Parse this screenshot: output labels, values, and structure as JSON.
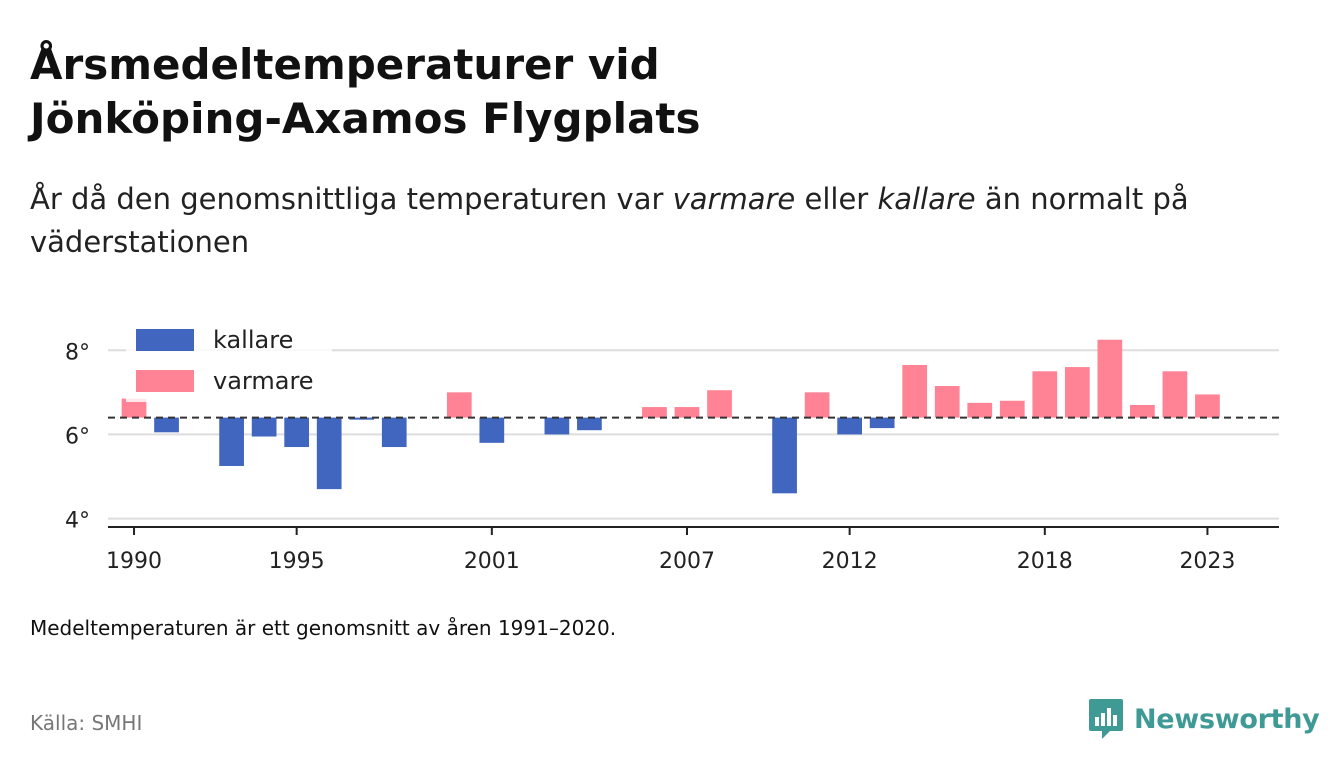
{
  "title_line1": "Årsmedeltemperaturer vid",
  "title_line2": "Jönköping-Axamos Flygplats",
  "subtitle_part1": "År då den genomsnittliga temperaturen var ",
  "subtitle_em1": "varmare",
  "subtitle_part2": " eller ",
  "subtitle_em2": "kallare",
  "subtitle_part3": " än normalt på väderstationen",
  "note": "Medeltemperaturen är ett genomsnitt av åren 1991–2020.",
  "source": "Källa: SMHI",
  "logo": {
    "text": "Newsworthy",
    "icon": "newsworthy-chart-icon",
    "color": "#3f9a96"
  },
  "chart_data": {
    "type": "bar",
    "baseline": 6.4,
    "baseline_style": "dashed",
    "ylim": [
      3.8,
      8.6
    ],
    "xlim": [
      1989.2,
      2025.2
    ],
    "yticks": [
      4,
      6,
      8
    ],
    "ytick_labels": [
      "4°",
      "6°",
      "8°"
    ],
    "xticks": [
      1990,
      1995,
      2001,
      2007,
      2012,
      2018,
      2023
    ],
    "xtick_labels": [
      "1990",
      "1995",
      "2001",
      "2007",
      "2012",
      "2018",
      "2023"
    ],
    "grid": true,
    "legend_position": "top-left",
    "legend": [
      {
        "name": "kallare",
        "color": "#4166c0"
      },
      {
        "name": "varmare",
        "color": "#ff8295"
      }
    ],
    "colors": {
      "kallare": "#4166c0",
      "varmare": "#ff8295"
    },
    "x": [
      1990,
      1991,
      1992,
      1993,
      1994,
      1995,
      1996,
      1997,
      1998,
      1999,
      2000,
      2001,
      2002,
      2003,
      2004,
      2005,
      2006,
      2007,
      2008,
      2009,
      2010,
      2011,
      2012,
      2013,
      2014,
      2015,
      2016,
      2017,
      2018,
      2019,
      2020,
      2021,
      2022,
      2023
    ],
    "values": [
      6.85,
      6.05,
      null,
      5.25,
      5.95,
      5.7,
      4.7,
      6.35,
      5.7,
      null,
      7.0,
      5.8,
      null,
      6.0,
      6.1,
      null,
      6.65,
      6.65,
      7.05,
      null,
      4.6,
      7.0,
      6.0,
      6.15,
      7.65,
      7.15,
      6.75,
      6.8,
      7.5,
      7.6,
      8.25,
      6.7,
      7.5,
      6.95
    ]
  }
}
